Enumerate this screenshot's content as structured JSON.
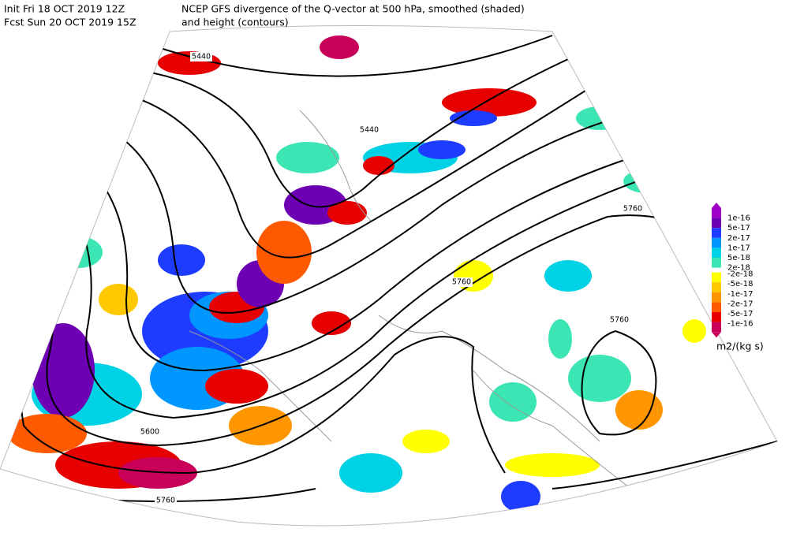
{
  "header": {
    "init": "Init  Fri 18 OCT 2019 12Z",
    "fcst": "Fcst Sun 20 OCT 2019 15Z",
    "title": "NCEP GFS divergence of the Q-vector at 500 hPa, smoothed (shaded)",
    "subtitle": "and height (contours)"
  },
  "legend": {
    "entries": [
      {
        "label": "1e-16",
        "color": "#a000c8"
      },
      {
        "label": "5e-17",
        "color": "#6e00b4"
      },
      {
        "label": "2e-17",
        "color": "#1e3cff"
      },
      {
        "label": "1e-17",
        "color": "#0096ff"
      },
      {
        "label": "5e-18",
        "color": "#00d2e6"
      },
      {
        "label": "2e-18",
        "color": "#3ce6b4"
      },
      {
        "label": "-2e-18",
        "color": "#ffff00"
      },
      {
        "label": "-5e-18",
        "color": "#ffc800"
      },
      {
        "label": "-1e-17",
        "color": "#ff9600"
      },
      {
        "label": "-2e-17",
        "color": "#ff5a00"
      },
      {
        "label": "-5e-17",
        "color": "#e60000"
      },
      {
        "label": "-1e-16",
        "color": "#c8005a"
      }
    ],
    "units": "m2/(kg s)"
  },
  "contour_labels": [
    "5440",
    "5440",
    "5760",
    "5760",
    "5760",
    "5600",
    "5760"
  ]
}
